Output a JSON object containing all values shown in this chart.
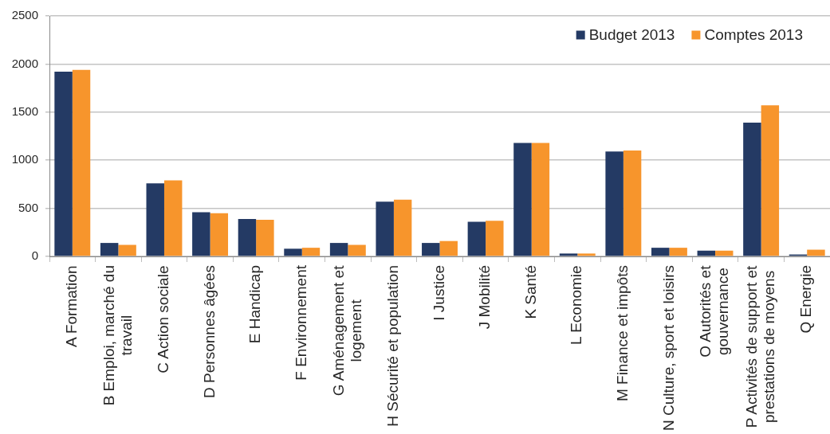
{
  "chart_data": {
    "type": "bar",
    "categories": [
      "A Formation",
      "B Emploi, marché du travail",
      "C Action sociale",
      "D Personnes âgées",
      "E Handicap",
      "F Environnement",
      "G Aménagement et logement",
      "H Sécurité et population",
      "I Justice",
      "J Mobilité",
      "K Santé",
      "L Economie",
      "M Finance et impôts",
      "N Culture, sport et loisirs",
      "O Autorités et gouvernance",
      "P Activités de support et prestations de moyens",
      "Q Energie"
    ],
    "series": [
      {
        "name": "Budget 2013",
        "color": "#243a64",
        "values": [
          1920,
          140,
          760,
          460,
          390,
          80,
          140,
          570,
          140,
          360,
          1180,
          30,
          1090,
          90,
          60,
          1390,
          20
        ]
      },
      {
        "name": "Comptes 2013",
        "color": "#f7952c",
        "values": [
          1940,
          120,
          790,
          450,
          380,
          90,
          120,
          590,
          160,
          370,
          1180,
          30,
          1100,
          90,
          60,
          1570,
          70
        ]
      }
    ],
    "ylim": [
      0,
      2500
    ],
    "yticks": [
      0,
      500,
      1000,
      1500,
      2000,
      2500
    ],
    "grid": "y",
    "legend": "top right"
  }
}
